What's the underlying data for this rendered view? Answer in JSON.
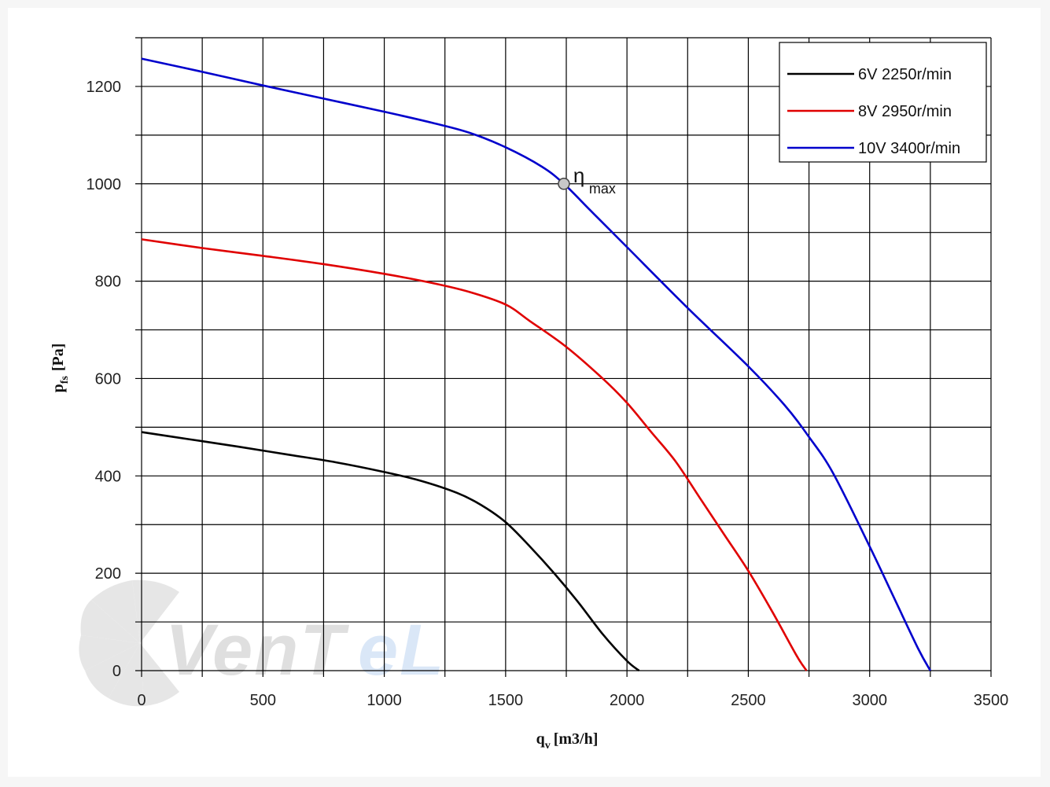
{
  "chart_data": {
    "type": "line",
    "xlabel": "q",
    "xlabel_sub": "v",
    "xlabel_unit": "[m3/h]",
    "ylabel": "p",
    "ylabel_sub": "fs",
    "ylabel_unit": "[Pa]",
    "xlim": [
      0,
      3500
    ],
    "ylim": [
      0,
      1300
    ],
    "x_ticks": [
      0,
      500,
      1000,
      1500,
      2000,
      2500,
      3000,
      3500
    ],
    "y_ticks": [
      0,
      200,
      400,
      600,
      800,
      1000,
      1200
    ],
    "x_grid_step": 250,
    "y_grid_step": 100,
    "grid": true,
    "legend_position": "top-right",
    "series": [
      {
        "name": "6V   2250r/min",
        "color": "#000000",
        "points": [
          [
            0,
            490
          ],
          [
            200,
            475
          ],
          [
            400,
            460
          ],
          [
            600,
            444
          ],
          [
            800,
            428
          ],
          [
            1000,
            408
          ],
          [
            1150,
            390
          ],
          [
            1300,
            365
          ],
          [
            1400,
            340
          ],
          [
            1500,
            305
          ],
          [
            1600,
            255
          ],
          [
            1700,
            200
          ],
          [
            1800,
            140
          ],
          [
            1900,
            75
          ],
          [
            2000,
            20
          ],
          [
            2050,
            0
          ]
        ]
      },
      {
        "name": "8V   2950r/min",
        "color": "#e00000",
        "points": [
          [
            0,
            886
          ],
          [
            250,
            868
          ],
          [
            500,
            852
          ],
          [
            750,
            835
          ],
          [
            1000,
            815
          ],
          [
            1200,
            796
          ],
          [
            1350,
            778
          ],
          [
            1500,
            752
          ],
          [
            1600,
            718
          ],
          [
            1750,
            665
          ],
          [
            1900,
            600
          ],
          [
            2000,
            550
          ],
          [
            2100,
            490
          ],
          [
            2200,
            430
          ],
          [
            2300,
            355
          ],
          [
            2400,
            280
          ],
          [
            2500,
            205
          ],
          [
            2600,
            120
          ],
          [
            2700,
            30
          ],
          [
            2740,
            0
          ]
        ]
      },
      {
        "name": "10V 3400r/min",
        "color": "#0000cc",
        "points": [
          [
            0,
            1257
          ],
          [
            250,
            1230
          ],
          [
            500,
            1202
          ],
          [
            750,
            1175
          ],
          [
            1000,
            1148
          ],
          [
            1200,
            1125
          ],
          [
            1350,
            1105
          ],
          [
            1500,
            1075
          ],
          [
            1650,
            1035
          ],
          [
            1740,
            1000
          ],
          [
            1850,
            945
          ],
          [
            2000,
            870
          ],
          [
            2250,
            745
          ],
          [
            2500,
            625
          ],
          [
            2650,
            545
          ],
          [
            2750,
            480
          ],
          [
            2850,
            405
          ],
          [
            3000,
            255
          ],
          [
            3100,
            150
          ],
          [
            3200,
            45
          ],
          [
            3250,
            0
          ]
        ]
      }
    ],
    "annotations": [
      {
        "label": "η",
        "sub": "max",
        "x": 1740,
        "y": 1000
      }
    ]
  },
  "watermark": {
    "text_dark": "VenT",
    "text_light": "eL"
  }
}
